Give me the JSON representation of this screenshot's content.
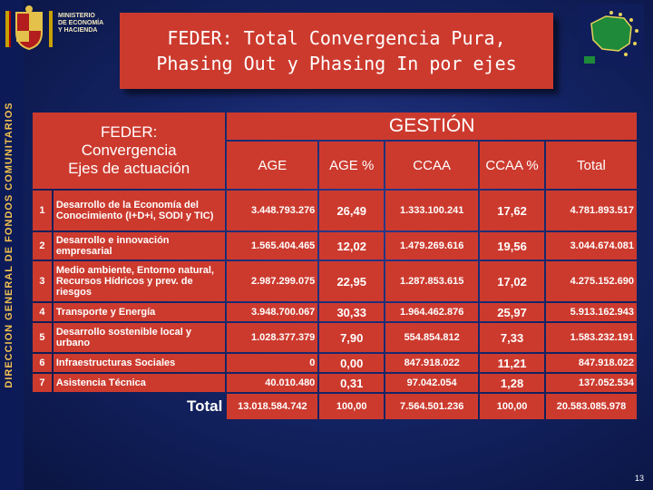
{
  "sidebar": {
    "text": "DIRECCION GENERAL DE FONDOS COMUNITARIOS"
  },
  "header": {
    "ministry_lines": [
      "MINISTERIO",
      "DE ECONOMÍA",
      "Y HACIENDA"
    ],
    "title_line1": "FEDER: Total Convergencia Pura,",
    "title_line2": "Phasing Out y Phasing In por ejes"
  },
  "table": {
    "ejes_header": [
      "FEDER:",
      "Convergencia",
      "Ejes de actuación"
    ],
    "gestion_header": "GESTIÓN",
    "columns": [
      "AGE",
      "AGE %",
      "CCAA",
      "CCAA %",
      "Total"
    ],
    "rows": [
      {
        "num": "1",
        "label": "Desarrollo de la Economía del Conocimiento (I+D+i, SODI y TIC)",
        "age": "3.448.793.276",
        "age_pct": "26,49",
        "ccaa": "1.333.100.241",
        "ccaa_pct": "17,62",
        "total": "4.781.893.517"
      },
      {
        "num": "2",
        "label": "Desarrollo e innovación empresarial",
        "age": "1.565.404.465",
        "age_pct": "12,02",
        "ccaa": "1.479.269.616",
        "ccaa_pct": "19,56",
        "total": "3.044.674.081"
      },
      {
        "num": "3",
        "label": "Medio ambiente, Entorno natural, Recursos Hídricos y prev. de riesgos",
        "age": "2.987.299.075",
        "age_pct": "22,95",
        "ccaa": "1.287.853.615",
        "ccaa_pct": "17,02",
        "total": "4.275.152.690"
      },
      {
        "num": "4",
        "label": "Transporte y Energía",
        "age": "3.948.700.067",
        "age_pct": "30,33",
        "ccaa": "1.964.462.876",
        "ccaa_pct": "25,97",
        "total": "5.913.162.943"
      },
      {
        "num": "5",
        "label": "Desarrollo sostenible local y urbano",
        "age": "1.028.377.379",
        "age_pct": "7,90",
        "ccaa": "554.854.812",
        "ccaa_pct": "7,33",
        "total": "1.583.232.191"
      },
      {
        "num": "6",
        "label": "Infraestructuras Sociales",
        "age": "0",
        "age_pct": "0,00",
        "ccaa": "847.918.022",
        "ccaa_pct": "11,21",
        "total": "847.918.022"
      },
      {
        "num": "7",
        "label": "Asistencia Técnica",
        "age": "40.010.480",
        "age_pct": "0,31",
        "ccaa": "97.042.054",
        "ccaa_pct": "1,28",
        "total": "137.052.534"
      }
    ],
    "total_row": {
      "label": "Total",
      "age": "13.018.584.742",
      "age_pct": "100,00",
      "ccaa": "7.564.501.236",
      "ccaa_pct": "100,00",
      "total": "20.583.085.978"
    }
  },
  "page_number": "13",
  "colors": {
    "accent_red": "#cc3a2e",
    "background": "#142466",
    "sidebar_text": "#f2c14e"
  }
}
